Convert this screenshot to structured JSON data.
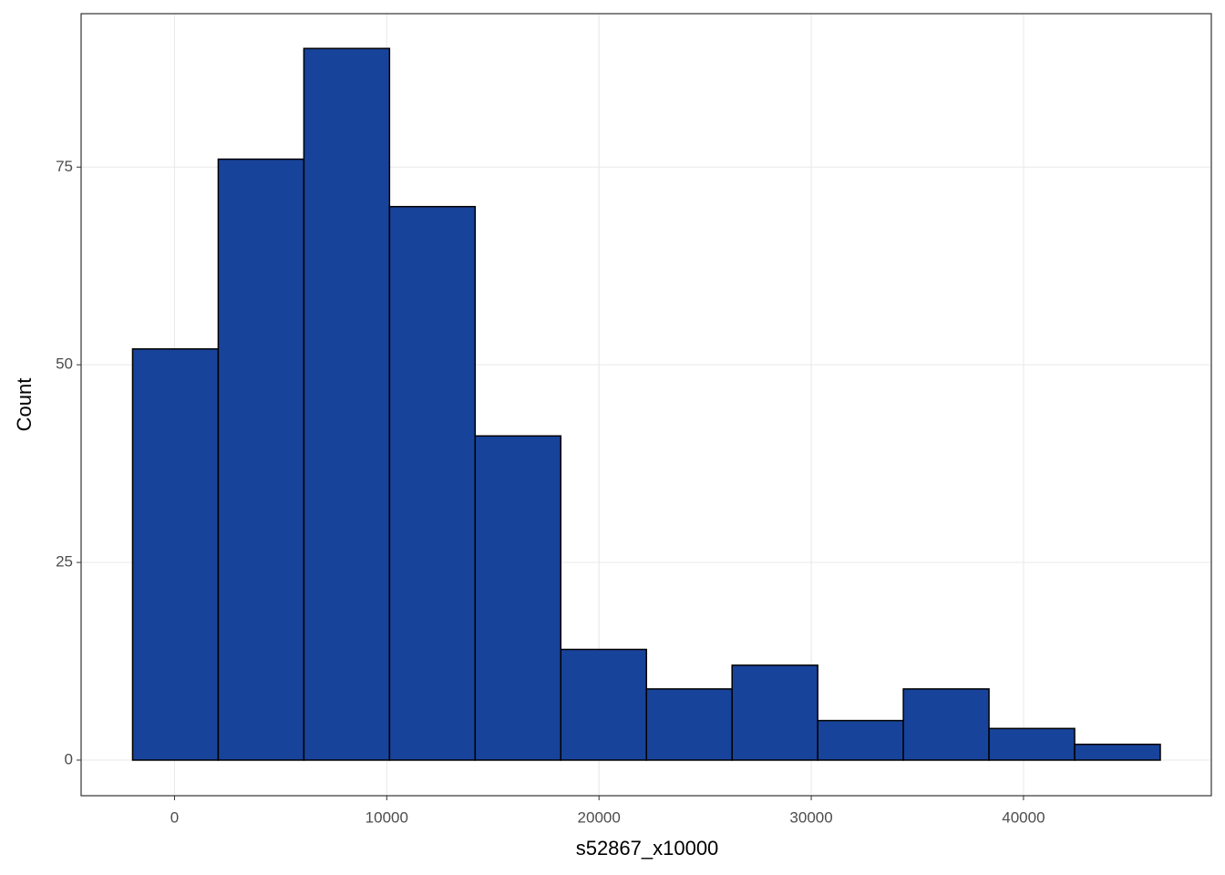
{
  "chart_data": {
    "type": "histogram",
    "x_label": "s52867_x10000",
    "y_label": "Count",
    "bins": [
      -1975,
      2060,
      6095,
      10130,
      14165,
      18200,
      22235,
      26270,
      30305,
      34340,
      38375,
      42410,
      46445
    ],
    "counts": [
      52,
      76,
      90,
      70,
      41,
      14,
      9,
      12,
      5,
      9,
      4,
      2
    ],
    "color": "#18439a",
    "xlim": [
      -4400,
      48850
    ],
    "ylim": [
      -4.5,
      94.4
    ],
    "xticks": [
      0,
      10000,
      20000,
      30000,
      40000
    ],
    "yticks": [
      0,
      25,
      50,
      75
    ],
    "grid": true
  }
}
